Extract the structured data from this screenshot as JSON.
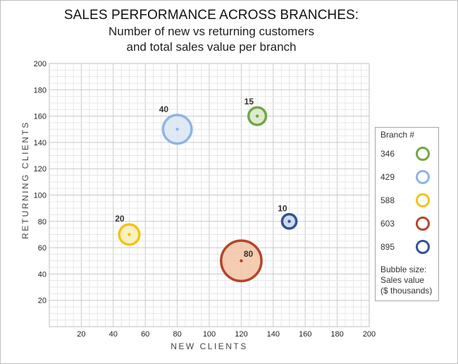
{
  "chart_data": {
    "type": "scatter",
    "title": "SALES PERFORMANCE ACROSS BRANCHES:",
    "subtitle_lines": [
      "Number of new vs returning customers",
      "and total sales value per branch"
    ],
    "xlabel": "NEW CLIENTS",
    "ylabel": "RETURNING CLIENTS",
    "xlim": [
      0,
      200
    ],
    "ylim": [
      0,
      200
    ],
    "x_ticks": [
      20,
      40,
      60,
      80,
      100,
      120,
      140,
      160,
      180,
      200
    ],
    "y_ticks": [
      20,
      40,
      60,
      80,
      100,
      120,
      140,
      160,
      180,
      200
    ],
    "grid": true,
    "legend_title": "Branch #",
    "legend_position": "right",
    "legend_note": [
      "Bubble size:",
      "Sales value",
      "($ thousands)"
    ],
    "series": [
      {
        "name": "346",
        "color": "#70a844",
        "fill": "#d9e8c8",
        "x": 130,
        "y": 160,
        "size": 15
      },
      {
        "name": "429",
        "color": "#8eb4e3",
        "fill": "#dbe6f5",
        "x": 80,
        "y": 150,
        "size": 40
      },
      {
        "name": "588",
        "color": "#f2c318",
        "fill": "#fcefb4",
        "x": 50,
        "y": 70,
        "size": 20
      },
      {
        "name": "603",
        "color": "#b5452b",
        "fill": "#f3c4a4",
        "x": 120,
        "y": 50,
        "size": 80
      },
      {
        "name": "895",
        "color": "#2e5597",
        "fill": "#c8d5ea",
        "x": 150,
        "y": 80,
        "size": 10
      }
    ]
  }
}
